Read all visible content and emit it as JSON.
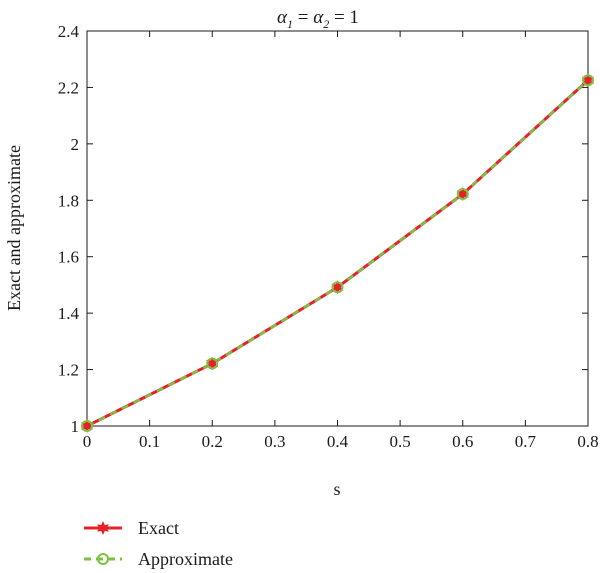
{
  "chart_data": {
    "type": "line",
    "title_parts": {
      "alpha": "α",
      "sub1": "1",
      "eq1": " = ",
      "sub2": "2",
      "eq2": " = 1"
    },
    "xlabel": "s",
    "ylabel": "Exact and approximate",
    "xlim": [
      0,
      0.8
    ],
    "ylim": [
      1,
      2.4
    ],
    "xticks": [
      0,
      0.1,
      0.2,
      0.3,
      0.4,
      0.5,
      0.6,
      0.7,
      0.8
    ],
    "xtick_labels": [
      "0",
      "0.1",
      "0.2",
      "0.3",
      "0.4",
      "0.5",
      "0.6",
      "0.7",
      "0.8"
    ],
    "yticks": [
      1,
      1.2,
      1.4,
      1.6,
      1.8,
      2,
      2.2,
      2.4
    ],
    "ytick_labels": [
      "1",
      "1.2",
      "1.4",
      "1.6",
      "1.8",
      "2",
      "2.2",
      "2.4"
    ],
    "grid": false,
    "legend_position": "bottom-left",
    "x": [
      0,
      0.2,
      0.4,
      0.6,
      0.8
    ],
    "series": [
      {
        "name": "Exact",
        "values": [
          1.0,
          1.2214,
          1.4918,
          1.8221,
          2.2255
        ],
        "color": "#e8202a",
        "marker": "star",
        "dash": "solid"
      },
      {
        "name": "Approximate",
        "values": [
          1.0,
          1.2214,
          1.4918,
          1.8221,
          2.2255
        ],
        "color": "#7cc242",
        "marker": "circle",
        "dash": "dashed"
      }
    ]
  }
}
